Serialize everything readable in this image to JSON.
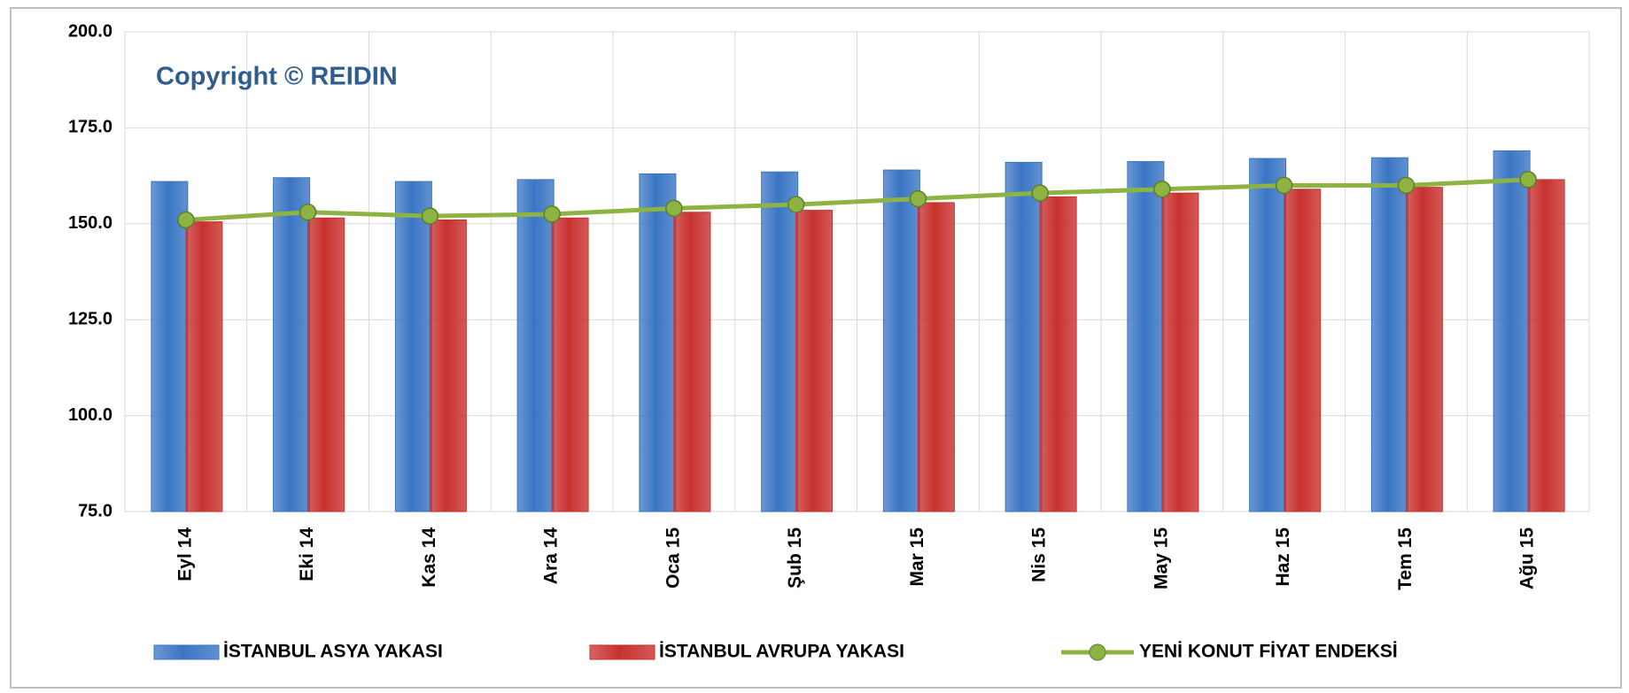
{
  "chart_data": {
    "type": "bar",
    "annotation": "Copyright © REIDIN",
    "categories": [
      "Eyl 14",
      "Eki 14",
      "Kas 14",
      "Ara 14",
      "Oca 15",
      "Şub 15",
      "Mar 15",
      "Nis 15",
      "May 15",
      "Haz 15",
      "Tem 15",
      "Ağu 15"
    ],
    "series": [
      {
        "name": "İSTANBUL ASYA YAKASI",
        "type": "bar",
        "color": "#3a75c4",
        "values": [
          161,
          162,
          161,
          161.5,
          163,
          163.5,
          164,
          166,
          166.2,
          167,
          167.2,
          169
        ]
      },
      {
        "name": "İSTANBUL AVRUPA YAKASI",
        "type": "bar",
        "color": "#c8312e",
        "values": [
          150.5,
          151.5,
          151,
          151.5,
          153,
          153.5,
          155.5,
          157,
          158,
          159,
          159.5,
          161.5
        ]
      },
      {
        "name": "YENİ KONUT FİYAT ENDEKSİ",
        "type": "line",
        "color": "#8db443",
        "values": [
          151,
          153,
          152,
          152.5,
          154,
          155,
          156.5,
          158,
          159,
          160,
          160,
          161.5
        ]
      }
    ],
    "ylim": [
      75,
      200
    ],
    "yticks": [
      {
        "value": 75,
        "label": "75.0"
      },
      {
        "value": 100,
        "label": "100.0"
      },
      {
        "value": 125,
        "label": "125.0"
      },
      {
        "value": 150,
        "label": "150.0"
      },
      {
        "value": 175,
        "label": "175.0"
      },
      {
        "value": 200,
        "label": "200.0"
      }
    ],
    "grid": true,
    "legend": "bottom"
  }
}
